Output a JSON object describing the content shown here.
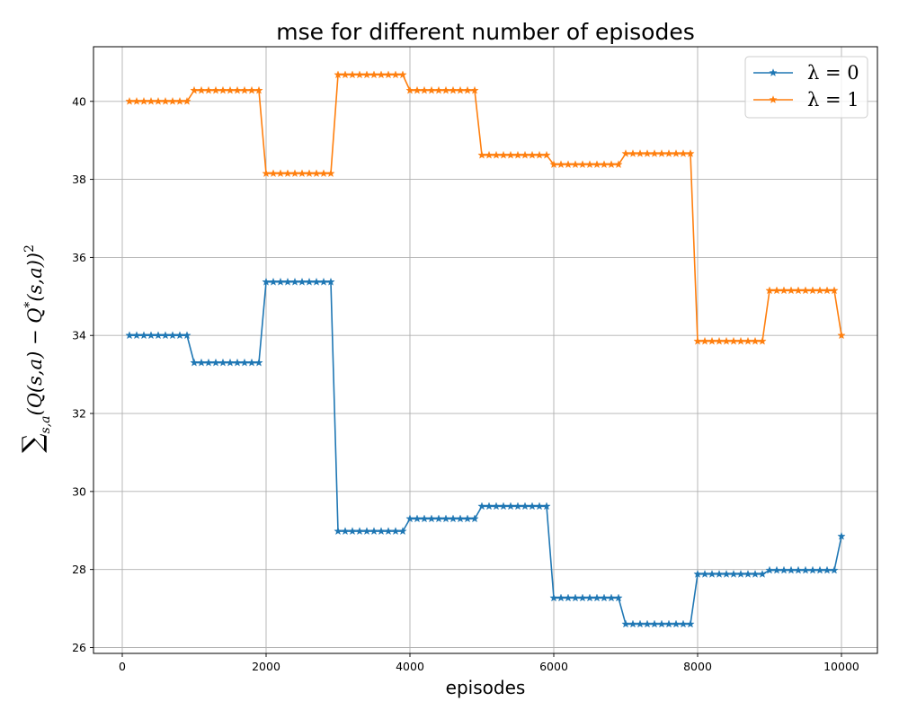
{
  "chart_data": {
    "type": "line",
    "title": "mse for different number of episodes",
    "xlabel": "episodes",
    "ylabel": "∑s,a(Q(s,a) − Q*(s,a))²",
    "xlim": [
      -400,
      10500
    ],
    "ylim": [
      25.85,
      41.4
    ],
    "xticks": [
      0,
      2000,
      4000,
      6000,
      8000,
      10000
    ],
    "yticks": [
      26,
      28,
      30,
      32,
      34,
      36,
      38,
      40
    ],
    "xtick_labels": [
      "0",
      "2000",
      "4000",
      "6000",
      "8000",
      "10000"
    ],
    "ytick_labels": [
      "26",
      "28",
      "30",
      "32",
      "34",
      "36",
      "38",
      "40"
    ],
    "grid": true,
    "legend_position": "top-right",
    "marker": "star",
    "x": [
      100,
      200,
      300,
      400,
      500,
      600,
      700,
      800,
      900,
      1000,
      1100,
      1200,
      1300,
      1400,
      1500,
      1600,
      1700,
      1800,
      1900,
      2000,
      2100,
      2200,
      2300,
      2400,
      2500,
      2600,
      2700,
      2800,
      2900,
      3000,
      3100,
      3200,
      3300,
      3400,
      3500,
      3600,
      3700,
      3800,
      3900,
      4000,
      4100,
      4200,
      4300,
      4400,
      4500,
      4600,
      4700,
      4800,
      4900,
      5000,
      5100,
      5200,
      5300,
      5400,
      5500,
      5600,
      5700,
      5800,
      5900,
      6000,
      6100,
      6200,
      6300,
      6400,
      6500,
      6600,
      6700,
      6800,
      6900,
      7000,
      7100,
      7200,
      7300,
      7400,
      7500,
      7600,
      7700,
      7800,
      7900,
      8000,
      8100,
      8200,
      8300,
      8400,
      8500,
      8600,
      8700,
      8800,
      8900,
      9000,
      9100,
      9200,
      9300,
      9400,
      9500,
      9600,
      9700,
      9800,
      9900,
      10000
    ],
    "series": [
      {
        "name": "λ = 0",
        "color": "#1f77b4",
        "levels": [
          {
            "from": 100,
            "to": 900,
            "value": 34.0
          },
          {
            "from": 1000,
            "to": 1900,
            "value": 33.3
          },
          {
            "from": 2000,
            "to": 2900,
            "value": 35.37
          },
          {
            "from": 3000,
            "to": 3900,
            "value": 28.98
          },
          {
            "from": 4000,
            "to": 4900,
            "value": 29.3
          },
          {
            "from": 5000,
            "to": 5900,
            "value": 29.62
          },
          {
            "from": 6000,
            "to": 6900,
            "value": 27.27
          },
          {
            "from": 7000,
            "to": 7900,
            "value": 26.6
          },
          {
            "from": 8000,
            "to": 8900,
            "value": 27.88
          },
          {
            "from": 9000,
            "to": 9900,
            "value": 27.98
          },
          {
            "from": 10000,
            "to": 10000,
            "value": 28.85
          }
        ]
      },
      {
        "name": "λ = 1",
        "color": "#ff7f0e",
        "levels": [
          {
            "from": 100,
            "to": 900,
            "value": 40.0
          },
          {
            "from": 1000,
            "to": 1900,
            "value": 40.28
          },
          {
            "from": 2000,
            "to": 2900,
            "value": 38.15
          },
          {
            "from": 3000,
            "to": 3900,
            "value": 40.68
          },
          {
            "from": 4000,
            "to": 4900,
            "value": 40.28
          },
          {
            "from": 5000,
            "to": 5900,
            "value": 38.62
          },
          {
            "from": 6000,
            "to": 6900,
            "value": 38.38
          },
          {
            "from": 7000,
            "to": 7900,
            "value": 38.66
          },
          {
            "from": 8000,
            "to": 8900,
            "value": 33.85
          },
          {
            "from": 9000,
            "to": 9900,
            "value": 35.15
          },
          {
            "from": 10000,
            "to": 10000,
            "value": 34.0
          }
        ]
      }
    ]
  }
}
